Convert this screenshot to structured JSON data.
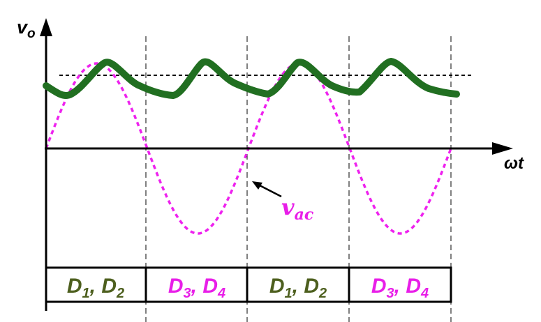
{
  "axes": {
    "y_label_main": "v",
    "y_label_sub": "o",
    "x_label": "ωt"
  },
  "annotation": {
    "main": "v",
    "sub": "ac"
  },
  "intervals": [
    {
      "d1": "D",
      "s1": "1",
      "sep": ", ",
      "d2": "D",
      "s2": "2",
      "color": "#4d5f1e"
    },
    {
      "d1": "D",
      "s1": "3",
      "sep": ", ",
      "d2": "D",
      "s2": "4",
      "color": "#e81ee8"
    },
    {
      "d1": "D",
      "s1": "1",
      "sep": ", ",
      "d2": "D",
      "s2": "2",
      "color": "#4d5f1e"
    },
    {
      "d1": "D",
      "s1": "3",
      "sep": ", ",
      "d2": "D",
      "s2": "4",
      "color": "#e81ee8"
    }
  ],
  "colors": {
    "output": "#216f21",
    "source": "#ee22ee",
    "green_label": "#4d5f1e",
    "magenta_label": "#e81ee8",
    "axis": "#000000"
  }
}
